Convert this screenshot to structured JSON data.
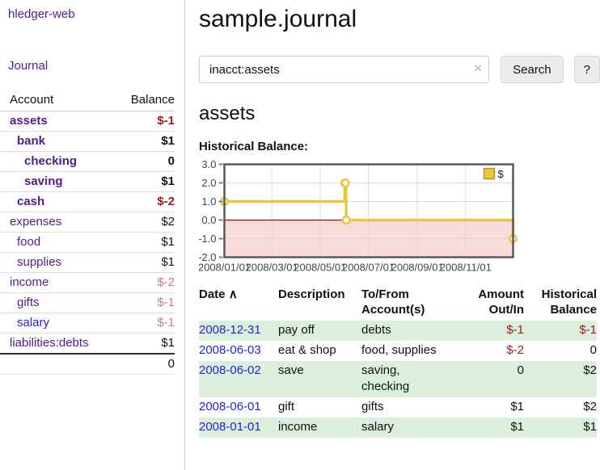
{
  "app": {
    "title": "hledger-web",
    "nav_journal": "Journal"
  },
  "sidebar": {
    "header": {
      "account": "Account",
      "balance": "Balance"
    },
    "rows": [
      {
        "account": "assets",
        "balance": "$-1",
        "indent": 1,
        "bold": true,
        "balance_class": "neg",
        "link_class": "visited"
      },
      {
        "account": "bank",
        "balance": "$1",
        "indent": 2,
        "bold": true,
        "balance_class": "",
        "link_class": "visited"
      },
      {
        "account": "checking",
        "balance": "0",
        "indent": 3,
        "bold": true,
        "balance_class": "",
        "link_class": "visited"
      },
      {
        "account": "saving",
        "balance": "$1",
        "indent": 3,
        "bold": true,
        "balance_class": "",
        "link_class": "visited"
      },
      {
        "account": "cash",
        "balance": "$-2",
        "indent": 2,
        "bold": true,
        "balance_class": "neg",
        "link_class": "visited"
      },
      {
        "account": "expenses",
        "balance": "$2",
        "indent": 1,
        "bold": false,
        "balance_class": "",
        "link_class": "visited"
      },
      {
        "account": "food",
        "balance": "$1",
        "indent": 2,
        "bold": false,
        "balance_class": "",
        "link_class": "visited"
      },
      {
        "account": "supplies",
        "balance": "$1",
        "indent": 2,
        "bold": false,
        "balance_class": "",
        "link_class": "visited"
      },
      {
        "account": "income",
        "balance": "$-2",
        "indent": 1,
        "bold": false,
        "balance_class": "neg-dim",
        "link_class": "visited"
      },
      {
        "account": "gifts",
        "balance": "$-1",
        "indent": 2,
        "bold": false,
        "balance_class": "neg-dim",
        "link_class": "visited"
      },
      {
        "account": "salary",
        "balance": "$-1",
        "indent": 2,
        "bold": false,
        "balance_class": "neg-dim",
        "link_class": "unvisited"
      },
      {
        "account": "liabilities:debts",
        "balance": "$1",
        "indent": 1,
        "bold": false,
        "balance_class": "",
        "link_class": "visited"
      }
    ],
    "total": "0"
  },
  "main": {
    "title": "sample.journal",
    "search": {
      "value": "inacct:assets",
      "clear_icon": "×",
      "button": "Search",
      "help_button": "?"
    },
    "account_heading": "assets",
    "chart_title": "Historical Balance:"
  },
  "register": {
    "columns": {
      "date": "Date",
      "sort_icon": "∧",
      "description": "Description",
      "accounts": "To/From Account(s)",
      "amount": "Amount Out/In",
      "balance": "Historical Balance"
    },
    "rows": [
      {
        "date": "2008-12-31",
        "description": "pay off",
        "accounts": "debts",
        "amount": "$-1",
        "balance": "$-1"
      },
      {
        "date": "2008-06-03",
        "description": "eat & shop",
        "accounts": "food, supplies",
        "amount": "$-2",
        "balance": "0"
      },
      {
        "date": "2008-06-02",
        "description": "save",
        "accounts": "saving, checking",
        "amount": "0",
        "balance": "$2"
      },
      {
        "date": "2008-06-01",
        "description": "gift",
        "accounts": "gifts",
        "amount": "$1",
        "balance": "$2"
      },
      {
        "date": "2008-01-01",
        "description": "income",
        "accounts": "salary",
        "amount": "$1",
        "balance": "$1"
      }
    ]
  },
  "chart_data": {
    "type": "line",
    "step": true,
    "title": "Historical Balance:",
    "series": [
      {
        "name": "$",
        "color": "#e9c53e",
        "points": [
          [
            "2008-01-01",
            1
          ],
          [
            "2008-06-01",
            2
          ],
          [
            "2008-06-02",
            2
          ],
          [
            "2008-06-03",
            0
          ],
          [
            "2008-12-31",
            -1
          ]
        ]
      }
    ],
    "x_range": [
      "2008-01-01",
      "2008-12-31"
    ],
    "ylim": [
      -2,
      3
    ],
    "yticks": [
      3,
      2,
      1,
      0,
      -1,
      -2
    ],
    "ytick_labels": [
      "3.0",
      "2.0",
      "1.0",
      "0.0",
      "-1.0",
      "-2.0"
    ],
    "xticks": [
      "2008/01/01",
      "2008/03/01",
      "2008/05/01",
      "2008/07/01",
      "2008/09/01",
      "2008/11/01"
    ],
    "grid": true,
    "legend_position": "top-right",
    "colors": {
      "negative_region": "#f9dbdb",
      "zero_line": "#8b1616",
      "border": "#545454",
      "grid": "#dadada",
      "tick": "#6b79c6",
      "label": "#454545",
      "legend_border": "#b2922e"
    }
  }
}
